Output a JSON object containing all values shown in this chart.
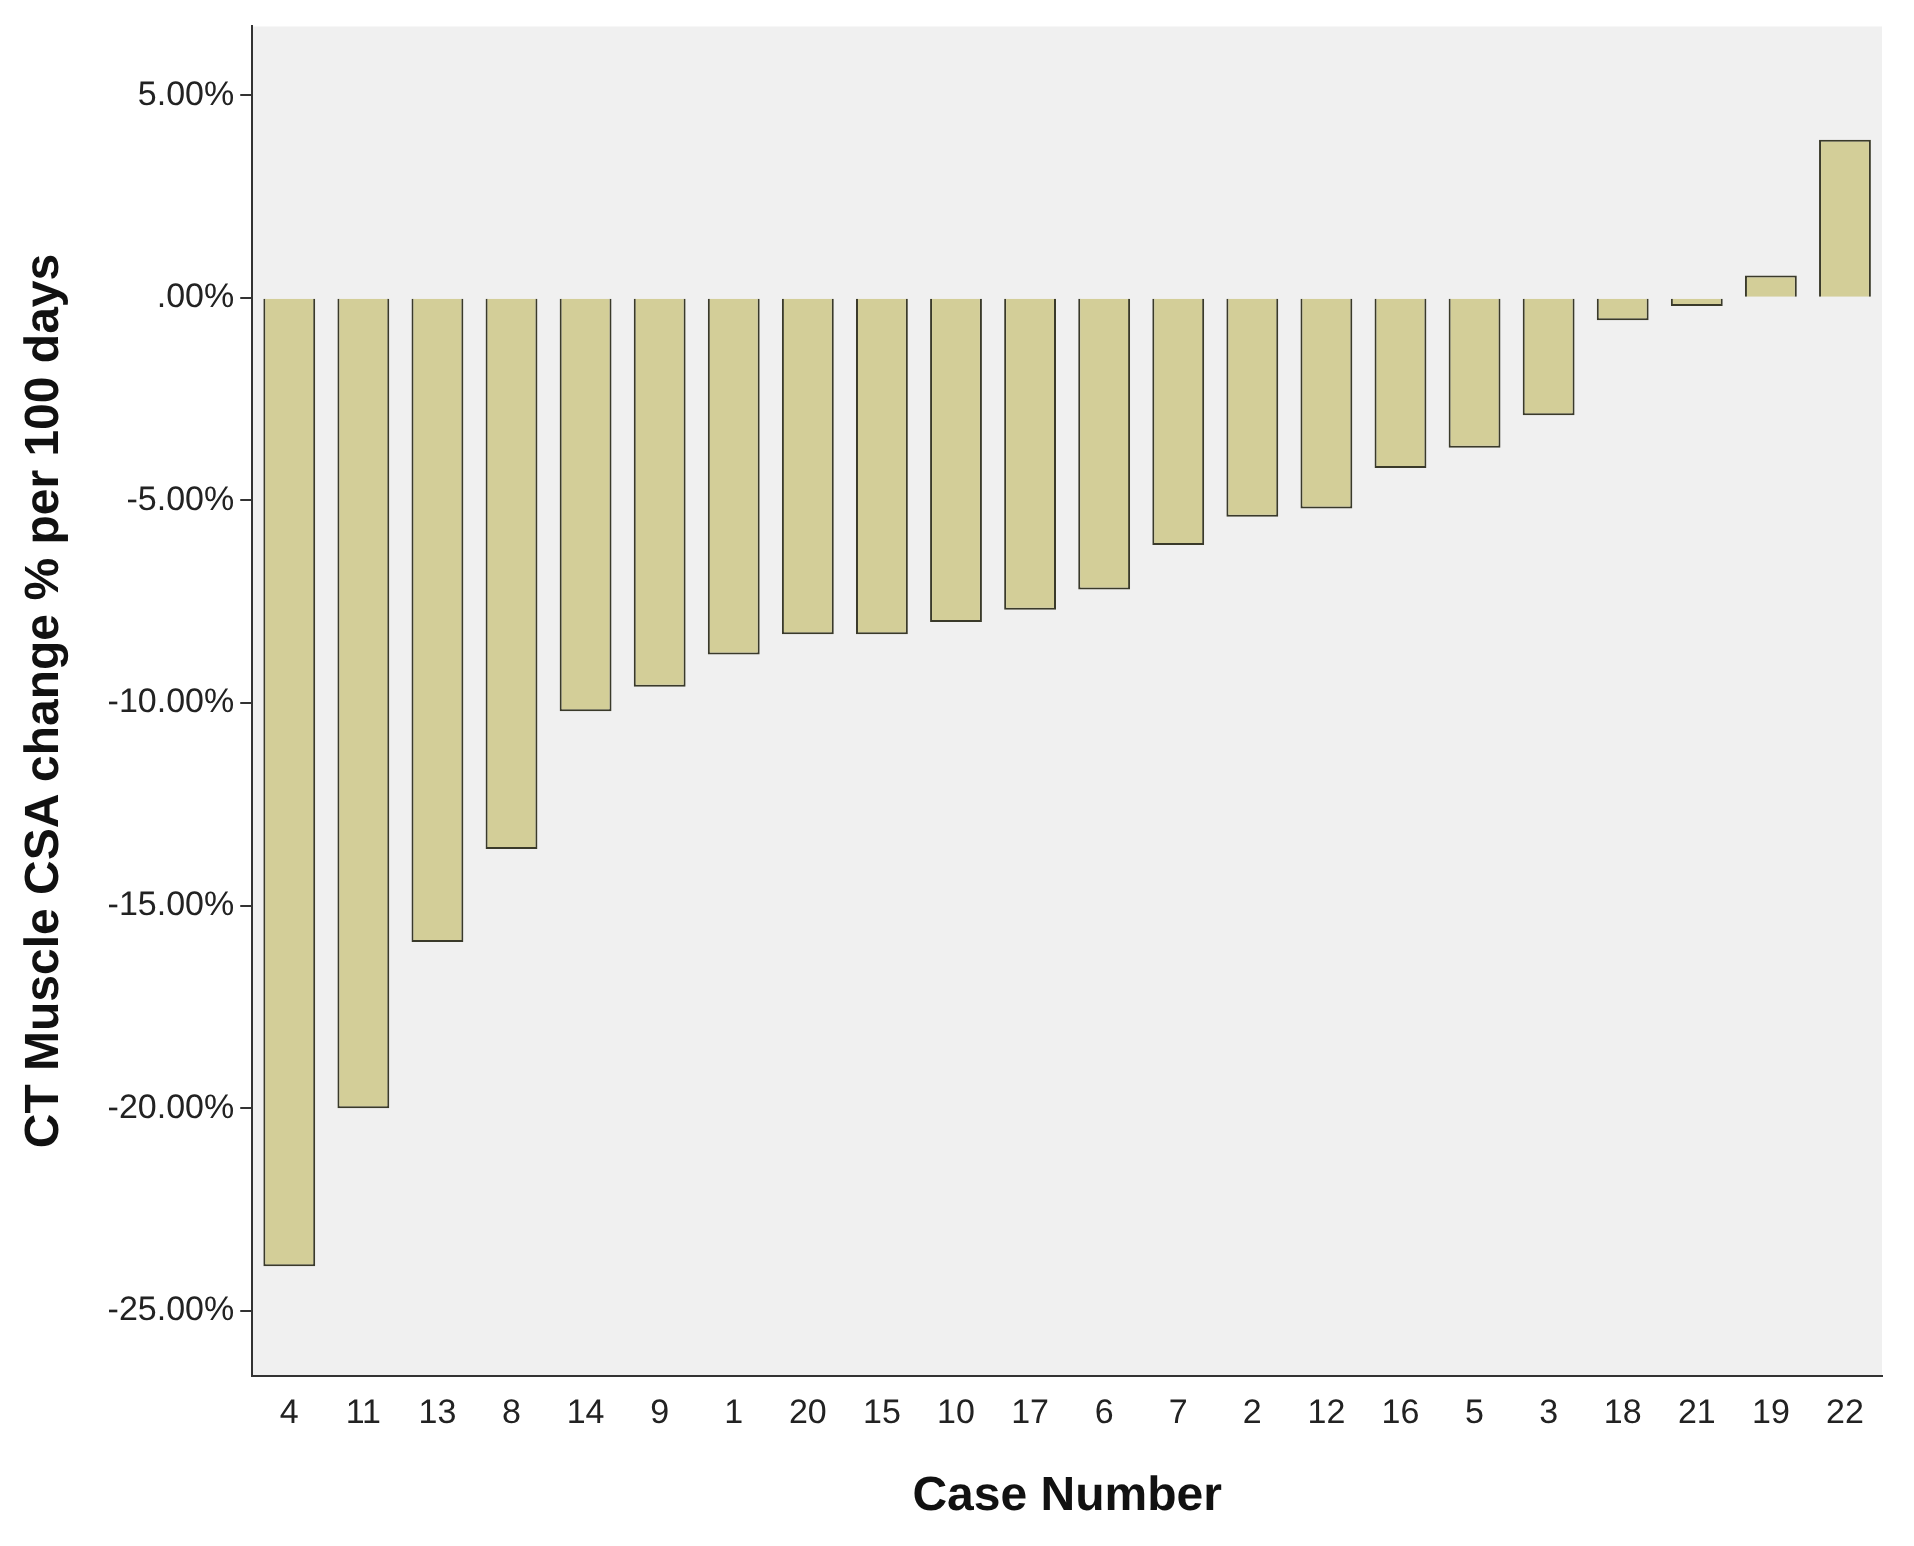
{
  "chart_data": {
    "type": "bar",
    "xlabel": "Case Number",
    "ylabel": "CT Muscle CSA change % per 100 days",
    "categories": [
      "4",
      "11",
      "13",
      "8",
      "14",
      "9",
      "1",
      "20",
      "15",
      "10",
      "17",
      "6",
      "7",
      "2",
      "12",
      "16",
      "5",
      "3",
      "18",
      "21",
      "19",
      "22"
    ],
    "values": [
      -23.9,
      -20.0,
      -15.9,
      -13.6,
      -10.2,
      -9.6,
      -8.8,
      -8.3,
      -8.3,
      -8.0,
      -7.7,
      -7.2,
      -6.1,
      -5.4,
      -5.2,
      -4.2,
      -3.7,
      -2.9,
      -0.55,
      -0.2,
      0.55,
      3.9
    ],
    "color": "#d3ce98",
    "ylim": [
      -26.6,
      6.7
    ],
    "yticks": [
      {
        "value": -25,
        "label": "-25.00%"
      },
      {
        "value": -20,
        "label": "-20.00%"
      },
      {
        "value": -15,
        "label": "-15.00%"
      },
      {
        "value": -10,
        "label": "-10.00%"
      },
      {
        "value": -5,
        "label": "-5.00%"
      },
      {
        "value": 0,
        "label": ".00%"
      },
      {
        "value": 5,
        "label": "5.00%"
      }
    ],
    "grid": false,
    "legend": false
  }
}
